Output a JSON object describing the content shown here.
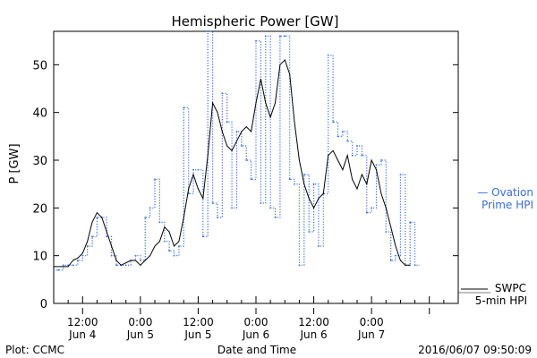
{
  "chart_data": {
    "type": "line",
    "title": "Hemispheric Power [GW]",
    "ylabel": "P [GW]",
    "xlabel": "Date and Time",
    "ylim": [
      0,
      57
    ],
    "yticks": [
      0,
      10,
      20,
      30,
      40,
      50
    ],
    "xlim": [
      6,
      90
    ],
    "xticks": [
      {
        "h": 12,
        "line1": "12:00",
        "line2": "Jun 4"
      },
      {
        "h": 24,
        "line1": "0:00",
        "line2": "Jun 5"
      },
      {
        "h": 36,
        "line1": "12:00",
        "line2": "Jun 5"
      },
      {
        "h": 48,
        "line1": "0:00",
        "line2": "Jun 6"
      },
      {
        "h": 60,
        "line1": "12:00",
        "line2": "Jun 6"
      },
      {
        "h": 72,
        "line1": "0:00",
        "line2": "Jun 7"
      }
    ],
    "x_unit_note": "x values are hours since 2016-06-04 00:00 UT",
    "series": [
      {
        "name_line1": "— Ovation",
        "name_line2": "Prime HPI",
        "color": "#3a6fd8",
        "style": "dotted-step",
        "points": [
          [
            6,
            7
          ],
          [
            7,
            7
          ],
          [
            8,
            8
          ],
          [
            9,
            8
          ],
          [
            10,
            8
          ],
          [
            11,
            9
          ],
          [
            12,
            10
          ],
          [
            13,
            12
          ],
          [
            14,
            14
          ],
          [
            15,
            18
          ],
          [
            16,
            18
          ],
          [
            17,
            14
          ],
          [
            18,
            10
          ],
          [
            19,
            8
          ],
          [
            20,
            8
          ],
          [
            21,
            8
          ],
          [
            22,
            9
          ],
          [
            23,
            10
          ],
          [
            24,
            9
          ],
          [
            25,
            18
          ],
          [
            26,
            20
          ],
          [
            27,
            26
          ],
          [
            28,
            17
          ],
          [
            29,
            13
          ],
          [
            30,
            11
          ],
          [
            31,
            10
          ],
          [
            32,
            12
          ],
          [
            33,
            41
          ],
          [
            34,
            23
          ],
          [
            35,
            28
          ],
          [
            36,
            28
          ],
          [
            37,
            14
          ],
          [
            38,
            57
          ],
          [
            39,
            21
          ],
          [
            40,
            18
          ],
          [
            41,
            44
          ],
          [
            42,
            38
          ],
          [
            43,
            20
          ],
          [
            44,
            36
          ],
          [
            45,
            33
          ],
          [
            46,
            30
          ],
          [
            47,
            26
          ],
          [
            48,
            55
          ],
          [
            49,
            21
          ],
          [
            50,
            56
          ],
          [
            51,
            20
          ],
          [
            52,
            18
          ],
          [
            53,
            56
          ],
          [
            54,
            56
          ],
          [
            55,
            26
          ],
          [
            56,
            25
          ],
          [
            57,
            8
          ],
          [
            58,
            27
          ],
          [
            59,
            15
          ],
          [
            60,
            25
          ],
          [
            61,
            12
          ],
          [
            62,
            23
          ],
          [
            63,
            52
          ],
          [
            64,
            38
          ],
          [
            65,
            35
          ],
          [
            66,
            36
          ],
          [
            67,
            34
          ],
          [
            68,
            31
          ],
          [
            69,
            33
          ],
          [
            70,
            31
          ],
          [
            71,
            19
          ],
          [
            72,
            20
          ],
          [
            73,
            29
          ],
          [
            74,
            30
          ],
          [
            75,
            15
          ],
          [
            76,
            9
          ],
          [
            77,
            10
          ],
          [
            78,
            27
          ],
          [
            79,
            8
          ],
          [
            80,
            17
          ],
          [
            81,
            8
          ]
        ]
      },
      {
        "name_line1": "SWPC",
        "name_line2": "5-min HPI",
        "color": "#000000",
        "style": "solid",
        "points": [
          [
            6,
            7.7
          ],
          [
            9,
            7.7
          ],
          [
            10,
            9
          ],
          [
            11,
            9.5
          ],
          [
            12,
            10.5
          ],
          [
            13,
            13
          ],
          [
            14,
            17
          ],
          [
            15,
            19
          ],
          [
            16,
            18
          ],
          [
            17,
            15
          ],
          [
            18,
            12
          ],
          [
            19,
            9
          ],
          [
            20,
            8
          ],
          [
            21,
            8.5
          ],
          [
            22,
            9
          ],
          [
            23,
            9
          ],
          [
            24,
            8
          ],
          [
            25,
            9
          ],
          [
            26,
            10
          ],
          [
            27,
            12
          ],
          [
            28,
            13
          ],
          [
            29,
            16
          ],
          [
            30,
            15
          ],
          [
            31,
            12
          ],
          [
            32,
            13
          ],
          [
            33,
            18
          ],
          [
            34,
            24
          ],
          [
            35,
            27
          ],
          [
            36,
            24
          ],
          [
            37,
            22
          ],
          [
            38,
            31
          ],
          [
            39,
            42
          ],
          [
            40,
            40
          ],
          [
            41,
            36
          ],
          [
            42,
            33
          ],
          [
            43,
            32
          ],
          [
            44,
            34
          ],
          [
            45,
            36
          ],
          [
            46,
            37
          ],
          [
            47,
            36
          ],
          [
            48,
            42
          ],
          [
            49,
            47
          ],
          [
            50,
            42
          ],
          [
            51,
            39
          ],
          [
            52,
            42
          ],
          [
            53,
            50
          ],
          [
            54,
            51
          ],
          [
            55,
            48
          ],
          [
            56,
            38
          ],
          [
            57,
            30
          ],
          [
            58,
            25
          ],
          [
            59,
            22
          ],
          [
            60,
            20
          ],
          [
            61,
            22
          ],
          [
            62,
            23
          ],
          [
            63,
            31
          ],
          [
            64,
            32
          ],
          [
            65,
            30
          ],
          [
            66,
            28
          ],
          [
            67,
            31
          ],
          [
            68,
            26
          ],
          [
            69,
            24
          ],
          [
            70,
            27
          ],
          [
            71,
            25
          ],
          [
            72,
            30
          ],
          [
            73,
            28
          ],
          [
            74,
            23
          ],
          [
            75,
            20
          ],
          [
            76,
            16
          ],
          [
            77,
            12
          ],
          [
            78,
            9
          ],
          [
            79,
            8
          ],
          [
            80,
            8
          ]
        ]
      }
    ],
    "footer_left": "Plot: CCMC",
    "footer_right": "2016/06/07 09:50:09"
  }
}
